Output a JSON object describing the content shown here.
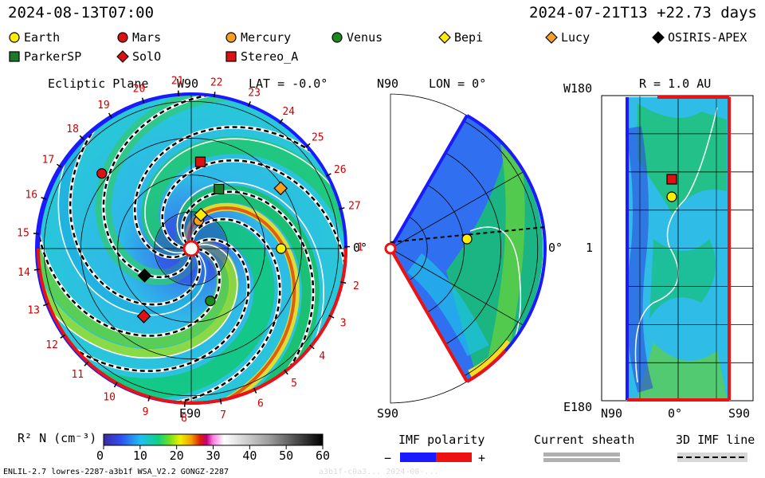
{
  "header": {
    "left_time": "2024-08-13T07:00",
    "right_time": "2024-07-21T13 +22.73 days"
  },
  "legend": [
    {
      "name": "Earth",
      "shape": "circle",
      "color": "#ffee00"
    },
    {
      "name": "Mars",
      "shape": "circle",
      "color": "#dd1111"
    },
    {
      "name": "Mercury",
      "shape": "circle",
      "color": "#f5a020"
    },
    {
      "name": "Venus",
      "shape": "circle",
      "color": "#1a8a1a"
    },
    {
      "name": "Bepi",
      "shape": "diamond",
      "color": "#ffee00"
    },
    {
      "name": "Lucy",
      "shape": "diamond",
      "color": "#f5a020"
    },
    {
      "name": "OSIRIS-APEX",
      "shape": "diamond",
      "color": "#000000"
    },
    {
      "name": "ParkerSP",
      "shape": "square",
      "color": "#1a7a2a"
    },
    {
      "name": "SolO",
      "shape": "diamond",
      "color": "#dd1111"
    },
    {
      "name": "Stereo_A",
      "shape": "square",
      "color": "#dd1111"
    }
  ],
  "panels": {
    "ecliptic": {
      "title": "Ecliptic Plane",
      "lat": "LAT = -0.0°",
      "top": "W90",
      "bottom": "E90",
      "right": "0°"
    },
    "meridional": {
      "top": "N90",
      "lon": "LON = 0°",
      "bottom": "S90",
      "right": "0°"
    },
    "radial": {
      "r": "R = 1.0 AU",
      "top_left": "W180",
      "left_mid": "1",
      "bottom_left": "E180",
      "x_left": "N90",
      "x_mid": "0°",
      "x_right": "S90"
    }
  },
  "carrington_labels": [
    "1",
    "2",
    "3",
    "4",
    "5",
    "6",
    "7",
    "8",
    "9",
    "10",
    "11",
    "12",
    "13",
    "14",
    "15",
    "16",
    "17",
    "18",
    "19",
    "20",
    "21",
    "22",
    "23",
    "24",
    "25",
    "26",
    "27"
  ],
  "colorbar": {
    "label": "R² N (cm⁻³)",
    "ticks": [
      "0",
      "10",
      "20",
      "30",
      "40",
      "50",
      "60"
    ]
  },
  "bottom_legend": {
    "imf_title": "IMF polarity",
    "minus": "−",
    "plus": "+",
    "sheath_title": "Current sheath",
    "imf_line_title": "3D IMF line"
  },
  "footer": {
    "left": "ENLIL-2.7 lowres-2287-a3b1f WSA_V2.2 GONGZ-2287",
    "right": "a3b1f-c0a3... 2024-08-..."
  },
  "chart_data": {
    "type": "heatmap",
    "title": "ENLIL solar wind density (scaled R² N) — ecliptic, meridional and 1 AU radial views",
    "quantity": "R² N (cm⁻³)",
    "color_range": [
      0,
      60
    ],
    "polar_ecliptic_planets": [
      {
        "name": "Earth",
        "angle_deg": 0,
        "r_au": 1.0
      },
      {
        "name": "Mercury",
        "angle_deg": 75,
        "r_au": 0.32
      },
      {
        "name": "Venus",
        "angle_deg": -70,
        "r_au": 0.62
      },
      {
        "name": "Mars",
        "angle_deg": 140,
        "r_au": 1.3
      },
      {
        "name": "Stereo_A",
        "angle_deg": 84,
        "r_au": 0.97
      },
      {
        "name": "Bepi",
        "angle_deg": 74,
        "r_au": 0.39
      },
      {
        "name": "ParkerSP",
        "angle_deg": 65,
        "r_au": 0.73
      },
      {
        "name": "Lucy",
        "angle_deg": 34,
        "r_au": 1.2
      },
      {
        "name": "OSIRIS-APEX",
        "angle_deg": -150,
        "r_au": 0.6
      },
      {
        "name": "SolO",
        "angle_deg": -125,
        "r_au": 0.92
      }
    ]
  }
}
